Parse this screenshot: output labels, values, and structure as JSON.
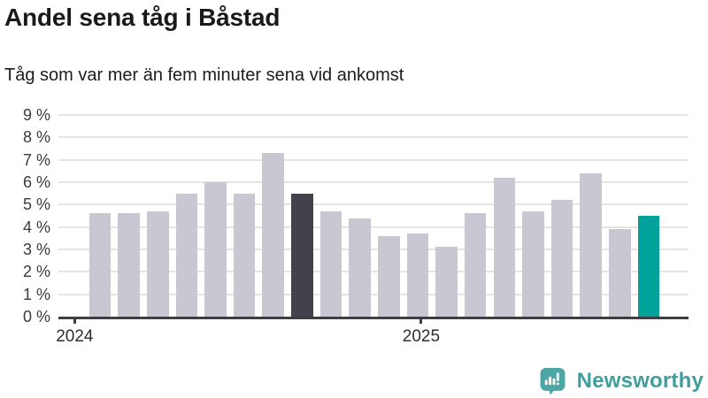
{
  "header": {
    "title": "Andel sena tåg i Båstad",
    "subtitle": "Tåg som var mer än fem minuter sena vid ankomst"
  },
  "chart_data": {
    "type": "bar",
    "title": "Andel sena tåg i Båstad",
    "subtitle": "Tåg som var mer än fem minuter sena vid ankomst",
    "unit": "%",
    "x_type": "monthly",
    "categories": [
      "2024-02",
      "2024-03",
      "2024-04",
      "2024-05",
      "2024-06",
      "2024-07",
      "2024-08",
      "2024-09",
      "2024-10",
      "2024-11",
      "2024-12",
      "2025-01",
      "2025-02",
      "2025-03",
      "2025-04",
      "2025-05",
      "2025-06",
      "2025-07",
      "2025-08",
      "2025-09"
    ],
    "values": [
      4.6,
      4.6,
      4.7,
      5.5,
      6.0,
      5.5,
      7.3,
      5.5,
      4.7,
      4.4,
      3.6,
      3.7,
      3.1,
      4.6,
      6.2,
      4.7,
      5.2,
      6.4,
      3.9,
      4.5
    ],
    "ylim": [
      0,
      9
    ],
    "ytick_step": 1,
    "ytick_labels": [
      "0 %",
      "1 %",
      "2 %",
      "3 %",
      "4 %",
      "5 %",
      "6 %",
      "7 %",
      "8 %",
      "9 %"
    ],
    "xticks": [
      {
        "label": "2024",
        "slot": -1
      },
      {
        "label": "2025",
        "slot": 11
      }
    ],
    "grid": true,
    "legend": "none",
    "colors": {
      "bar_default": "#c9c8d2",
      "bar_highlight_previous_year": "#42414c",
      "bar_highlight_latest": "#00a29a"
    },
    "highlight_indices": {
      "previous_year": 7,
      "latest": 19
    }
  },
  "footer": {
    "brand": "Newsworthy",
    "brand_color": "#3f9e9e",
    "logo_icon": "newsworthy-speech-bubble-bar-chart-icon"
  }
}
